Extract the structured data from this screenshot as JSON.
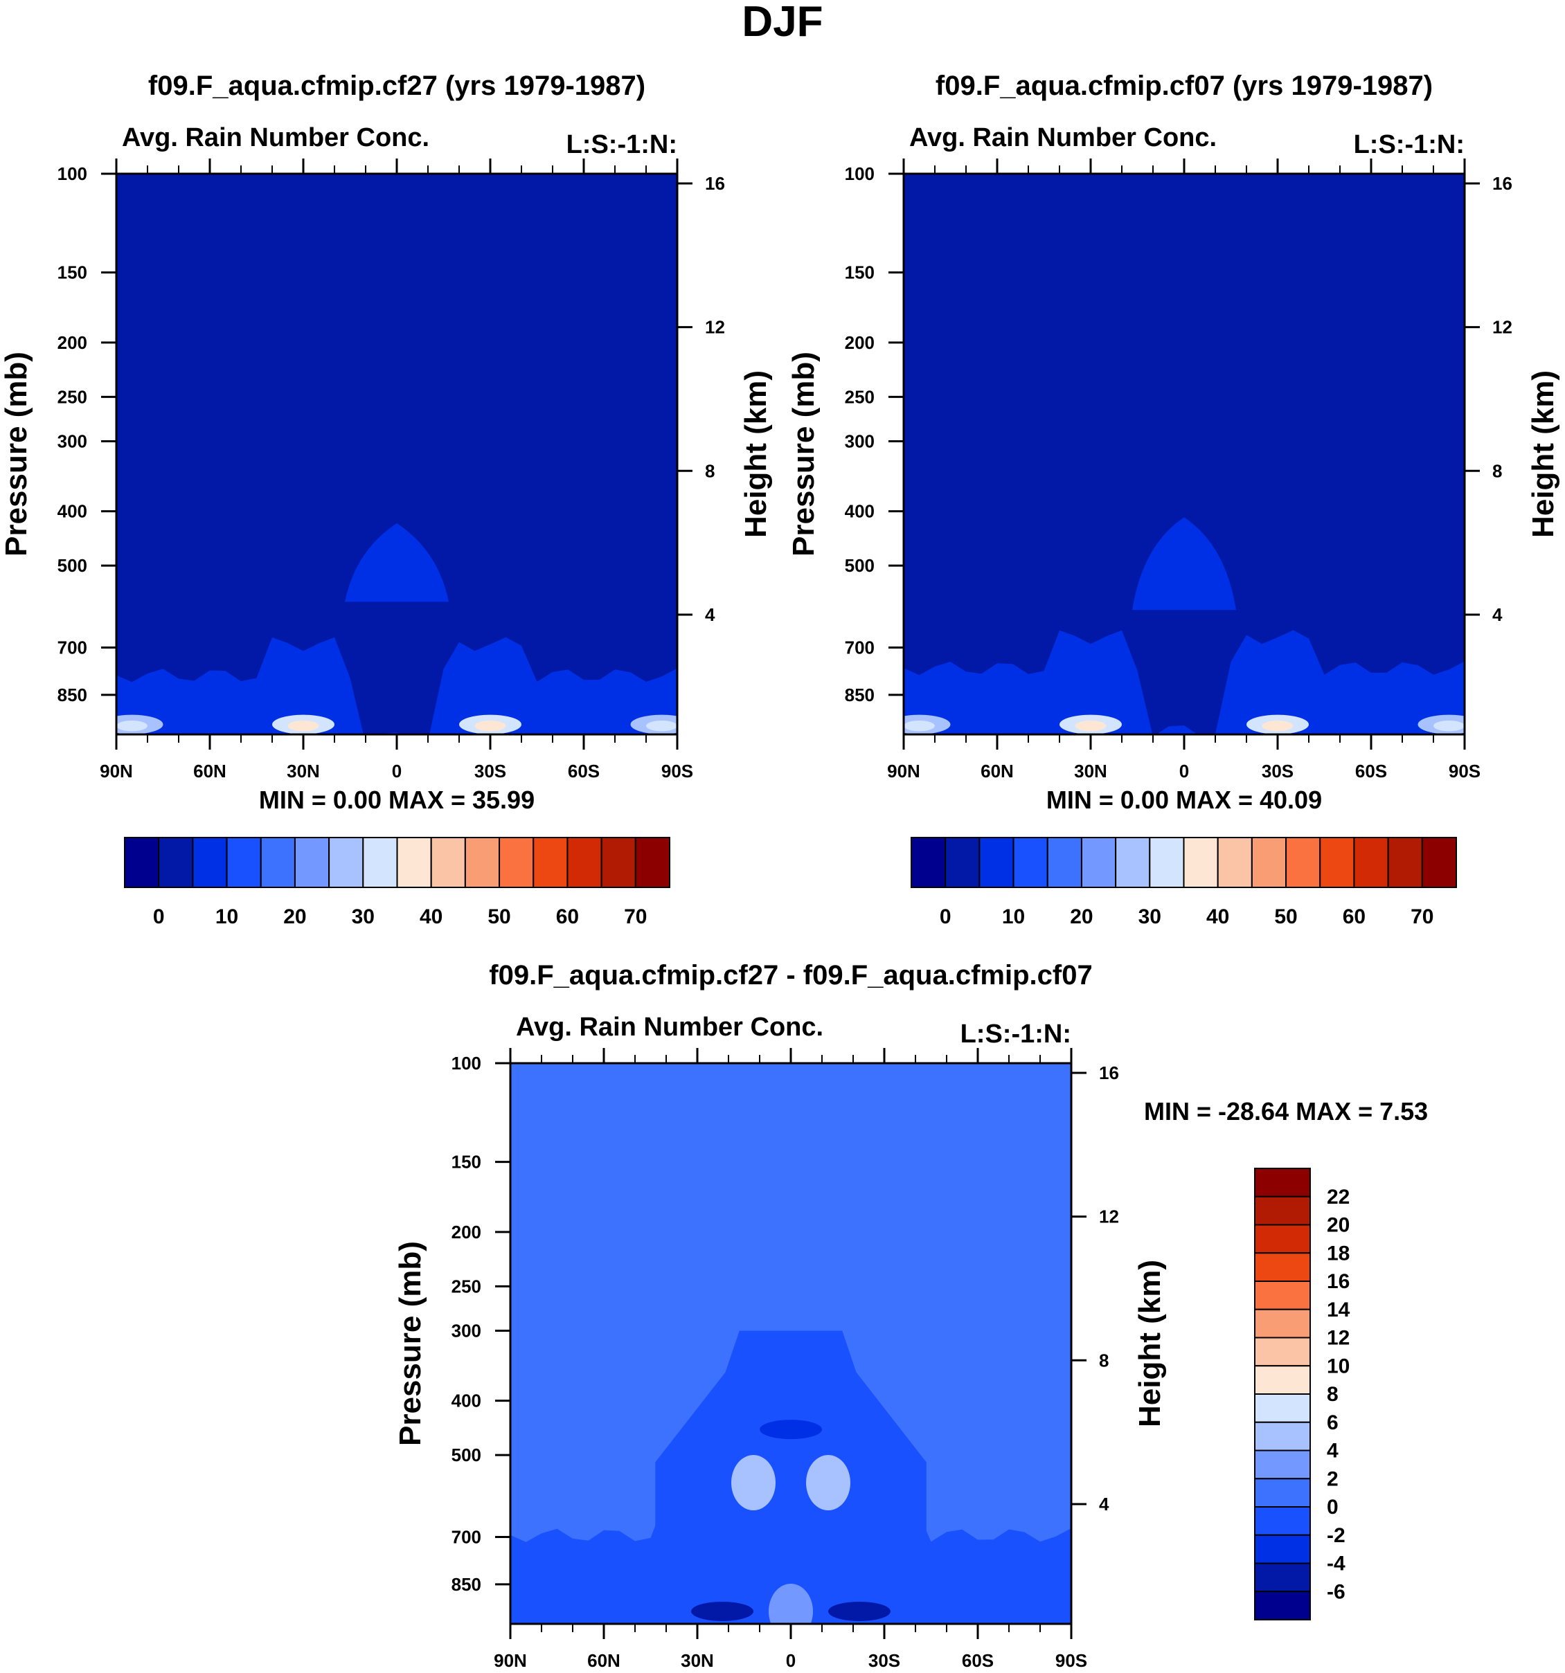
{
  "figure": {
    "title": "DJF"
  },
  "colors": {
    "absolute_bar": [
      "#00008f",
      "#0219a8",
      "#0030e6",
      "#1a51ff",
      "#3d72ff",
      "#7398ff",
      "#a8c1ff",
      "#d3e4ff",
      "#fde7d4",
      "#fbc4a6",
      "#f99e74",
      "#f9723f",
      "#ed4712",
      "#d12a04",
      "#b11b04",
      "#8c0000"
    ],
    "difference_bar": [
      "#00008f",
      "#0219a8",
      "#0030e6",
      "#1a51ff",
      "#3d72ff",
      "#7398ff",
      "#a8c1ff",
      "#d3e4ff",
      "#fde7d4",
      "#fbc4a6",
      "#f99e74",
      "#f9723f",
      "#ed4712",
      "#d12a04",
      "#b11b04",
      "#8c0000"
    ]
  },
  "chart_data": [
    {
      "type": "heatmap",
      "id": "cf27",
      "title": "f09.F_aqua.cfmip.cf27 (yrs 1979-1987)",
      "subtitle_left": "Avg. Rain Number Conc.",
      "subtitle_right": "L:S:-1:N:",
      "xlabel": "",
      "ylabel": "Pressure (mb)",
      "ylabel_right": "Height (km)",
      "x_ticks": [
        "90N",
        "60N",
        "30N",
        "0",
        "30S",
        "60S",
        "90S"
      ],
      "x_range": [
        90,
        -90
      ],
      "y_ticks": [
        100,
        150,
        200,
        250,
        300,
        400,
        500,
        700,
        850
      ],
      "y_range": [
        100,
        1000
      ],
      "y_scale": "log",
      "height_ticks": [
        16,
        12,
        8,
        4
      ],
      "stats": "MIN =   0.00  MAX =  35.99",
      "min": 0.0,
      "max": 35.99,
      "background_level": 1,
      "features": [
        {
          "kind": "low-level band",
          "lat_range": [
            90,
            -90
          ],
          "p_range": [
            700,
            1000
          ],
          "level": 2
        },
        {
          "kind": "convective plume",
          "lat": 0,
          "p_top": 420,
          "p_bottom": 580,
          "level": 2
        },
        {
          "kind": "maximum",
          "lat": 30,
          "p": 960,
          "level": 7
        },
        {
          "kind": "maximum",
          "lat": -30,
          "p": 960,
          "level": 7
        },
        {
          "kind": "maximum",
          "lat": 85,
          "p": 960,
          "level": 6
        },
        {
          "kind": "maximum",
          "lat": -85,
          "p": 960,
          "level": 6
        }
      ],
      "colorbar": {
        "orientation": "horizontal",
        "levels": [
          -5,
          0,
          5,
          10,
          15,
          20,
          25,
          30,
          35,
          40,
          45,
          50,
          55,
          60,
          65,
          70,
          75
        ],
        "tick_labels": [
          "0",
          "10",
          "20",
          "30",
          "40",
          "50",
          "60",
          "70"
        ],
        "tick_values": [
          0,
          10,
          20,
          30,
          40,
          50,
          60,
          70
        ]
      }
    },
    {
      "type": "heatmap",
      "id": "cf07",
      "title": "f09.F_aqua.cfmip.cf07 (yrs 1979-1987)",
      "subtitle_left": "Avg. Rain Number Conc.",
      "subtitle_right": "L:S:-1:N:",
      "xlabel": "",
      "ylabel": "Pressure (mb)",
      "ylabel_right": "Height (km)",
      "x_ticks": [
        "90N",
        "60N",
        "30N",
        "0",
        "30S",
        "60S",
        "90S"
      ],
      "x_range": [
        90,
        -90
      ],
      "y_ticks": [
        100,
        150,
        200,
        250,
        300,
        400,
        500,
        700,
        850
      ],
      "y_range": [
        100,
        1000
      ],
      "y_scale": "log",
      "height_ticks": [
        16,
        12,
        8,
        4
      ],
      "stats": "MIN =   0.00  MAX =  40.09",
      "min": 0.0,
      "max": 40.09,
      "background_level": 1,
      "features": [
        {
          "kind": "low-level band",
          "lat_range": [
            90,
            -90
          ],
          "p_range": [
            680,
            1000
          ],
          "level": 2
        },
        {
          "kind": "convective plume",
          "lat": 0,
          "p_top": 410,
          "p_bottom": 600,
          "level": 2
        },
        {
          "kind": "maximum",
          "lat": 30,
          "p": 960,
          "level": 7
        },
        {
          "kind": "maximum",
          "lat": -30,
          "p": 960,
          "level": 7
        },
        {
          "kind": "maximum",
          "lat": 85,
          "p": 960,
          "level": 6
        },
        {
          "kind": "maximum",
          "lat": -85,
          "p": 960,
          "level": 6
        }
      ],
      "colorbar": {
        "orientation": "horizontal",
        "levels": [
          -5,
          0,
          5,
          10,
          15,
          20,
          25,
          30,
          35,
          40,
          45,
          50,
          55,
          60,
          65,
          70,
          75
        ],
        "tick_labels": [
          "0",
          "10",
          "20",
          "30",
          "40",
          "50",
          "60",
          "70"
        ],
        "tick_values": [
          0,
          10,
          20,
          30,
          40,
          50,
          60,
          70
        ]
      }
    },
    {
      "type": "heatmap",
      "id": "diff",
      "title": "f09.F_aqua.cfmip.cf27 - f09.F_aqua.cfmip.cf07",
      "subtitle_left": "Avg. Rain Number Conc.",
      "subtitle_right": "L:S:-1:N:",
      "xlabel": "",
      "ylabel": "Pressure (mb)",
      "ylabel_right": "Height (km)",
      "x_ticks": [
        "90N",
        "60N",
        "30N",
        "0",
        "30S",
        "60S",
        "90S"
      ],
      "x_range": [
        90,
        -90
      ],
      "y_ticks": [
        100,
        150,
        200,
        250,
        300,
        400,
        500,
        700,
        850
      ],
      "y_range": [
        100,
        1000
      ],
      "y_scale": "log",
      "height_ticks": [
        16,
        12,
        8,
        4
      ],
      "stats": "MIN = -28.64  MAX =   7.53",
      "min": -28.64,
      "max": 7.53,
      "background_level": 4,
      "features": [
        {
          "kind": "negative region",
          "lat_range": [
            30,
            -30
          ],
          "p_range": [
            300,
            1000
          ],
          "level": 3
        },
        {
          "kind": "negative region",
          "lat_range": [
            90,
            -90
          ],
          "p_range": [
            620,
            1000
          ],
          "level": 3
        },
        {
          "kind": "minimum",
          "lat": 22,
          "p": 950,
          "level": 1
        },
        {
          "kind": "minimum",
          "lat": -22,
          "p": 950,
          "level": 1
        },
        {
          "kind": "minimum",
          "lat": 0,
          "p": 450,
          "level": 2
        },
        {
          "kind": "positive region",
          "lat": 12,
          "p": 560,
          "level": 6
        },
        {
          "kind": "positive region",
          "lat": -12,
          "p": 560,
          "level": 6
        },
        {
          "kind": "positive region",
          "lat": 0,
          "p": 950,
          "level": 5
        }
      ],
      "colorbar": {
        "orientation": "vertical",
        "levels": [
          -8,
          -6,
          -4,
          -2,
          0,
          2,
          4,
          6,
          8,
          10,
          12,
          14,
          16,
          18,
          20,
          22,
          24
        ],
        "tick_labels": [
          "22",
          "20",
          "18",
          "16",
          "14",
          "12",
          "10",
          "8",
          "6",
          "4",
          "2",
          "0",
          "-2",
          "-4",
          "-6"
        ],
        "tick_values": [
          22,
          20,
          18,
          16,
          14,
          12,
          10,
          8,
          6,
          4,
          2,
          0,
          -2,
          -4,
          -6
        ]
      }
    }
  ]
}
